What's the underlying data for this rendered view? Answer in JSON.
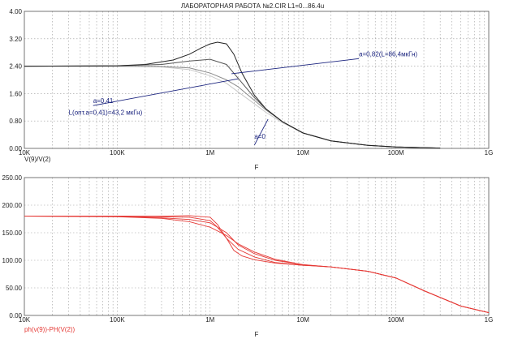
{
  "window_title": "ЛАБОРАТОРНАЯ РАБОТА №2.CIR L1=0...86.4u",
  "chart_data": [
    {
      "type": "line",
      "x_scale": "log",
      "xlim": [
        10000,
        1000000000
      ],
      "ylim": [
        0,
        4
      ],
      "x_tick_labels": [
        "10K",
        "100K",
        "1M",
        "10M",
        "100M",
        "1G"
      ],
      "x_tick_values": [
        10000,
        100000,
        1000000,
        10000000,
        100000000,
        1000000000
      ],
      "y_tick_labels": [
        "0.00",
        "0.80",
        "1.60",
        "2.40",
        "3.20",
        "4.00"
      ],
      "y_tick_values": [
        0,
        0.8,
        1.6,
        2.4,
        3.2,
        4.0
      ],
      "xlabel": "F",
      "ylabel": "V(9)/V(2)",
      "grid": true,
      "series": [
        {
          "color": "#c8c8c8",
          "x": [
            10000,
            100000,
            300000,
            600000,
            1000000,
            1500000,
            2000000,
            3000000,
            4000000,
            6000000,
            10000000,
            20000000,
            50000000,
            100000000,
            300000000
          ],
          "y": [
            2.4,
            2.4,
            2.38,
            2.3,
            2.12,
            1.9,
            1.65,
            1.3,
            1.05,
            0.75,
            0.45,
            0.22,
            0.09,
            0.04,
            0.01
          ]
        },
        {
          "color": "#8c8c8c",
          "x": [
            10000,
            100000,
            300000,
            600000,
            1000000,
            1500000,
            2000000,
            3000000,
            4000000,
            6000000,
            10000000,
            20000000,
            50000000,
            100000000,
            300000000
          ],
          "y": [
            2.4,
            2.4,
            2.39,
            2.35,
            2.2,
            2.0,
            1.8,
            1.4,
            1.12,
            0.78,
            0.45,
            0.22,
            0.09,
            0.04,
            0.01
          ]
        },
        {
          "color": "#555555",
          "x": [
            10000,
            100000,
            300000,
            600000,
            1000000,
            1500000,
            2000000,
            3000000,
            4000000,
            6000000,
            10000000,
            20000000,
            50000000,
            100000000,
            300000000
          ],
          "y": [
            2.4,
            2.41,
            2.45,
            2.55,
            2.6,
            2.45,
            2.05,
            1.48,
            1.15,
            0.78,
            0.45,
            0.22,
            0.09,
            0.04,
            0.01
          ]
        },
        {
          "color": "#222222",
          "x": [
            10000,
            100000,
            200000,
            400000,
            600000,
            800000,
            1000000,
            1200000,
            1500000,
            1800000,
            2200000,
            3000000,
            4000000,
            6000000,
            10000000,
            20000000,
            50000000,
            100000000,
            300000000
          ],
          "y": [
            2.4,
            2.41,
            2.45,
            2.58,
            2.75,
            2.93,
            3.05,
            3.1,
            3.05,
            2.75,
            2.2,
            1.55,
            1.15,
            0.78,
            0.45,
            0.22,
            0.09,
            0.04,
            0.01
          ]
        }
      ],
      "annotations": [
        {
          "text": "a=0,82(L=86,4мкГн)",
          "at": [
            40000000,
            2.62
          ],
          "to": [
            1700000,
            2.18
          ]
        },
        {
          "text": "a=0,41",
          "at": [
            55000,
            1.25
          ],
          "to": [
            2000000,
            2.03
          ]
        },
        {
          "text": "L(опт.a=0,41)=43,2 мкГн)",
          "at": [
            30000,
            0.98
          ]
        },
        {
          "text": "a=0",
          "at": [
            3000000,
            0.1
          ],
          "to": [
            4200000,
            0.85
          ]
        }
      ]
    },
    {
      "type": "line",
      "x_scale": "log",
      "xlim": [
        10000,
        1000000000
      ],
      "ylim": [
        0,
        250
      ],
      "x_tick_labels": [
        "10K",
        "100K",
        "1M",
        "10M",
        "100M",
        "1G"
      ],
      "x_tick_values": [
        10000,
        100000,
        1000000,
        10000000,
        100000000,
        1000000000
      ],
      "y_tick_labels": [
        "0.00",
        "50.00",
        "100.00",
        "150.00",
        "200.00",
        "250.00"
      ],
      "y_tick_values": [
        0,
        50,
        100,
        150,
        200,
        250
      ],
      "xlabel": "F",
      "ylabel": "ph(v(9))-PH(V(2))",
      "grid": true,
      "series": [
        {
          "color": "#e53935",
          "x": [
            10000,
            100000,
            300000,
            600000,
            1000000,
            1500000,
            2000000,
            3000000,
            5000000,
            10000000,
            20000000,
            50000000,
            100000000,
            200000000,
            500000000,
            1000000000
          ],
          "y": [
            180,
            179,
            176,
            170,
            160,
            145,
            130,
            115,
            102,
            92,
            88,
            80,
            68,
            45,
            17,
            5
          ]
        },
        {
          "color": "#e53935",
          "x": [
            10000,
            100000,
            300000,
            600000,
            1000000,
            1500000,
            2000000,
            3000000,
            5000000,
            10000000,
            20000000,
            50000000,
            100000000,
            200000000,
            500000000,
            1000000000
          ],
          "y": [
            180,
            179.5,
            177,
            174,
            168,
            150,
            128,
            112,
            100,
            92,
            88,
            80,
            68,
            45,
            17,
            5
          ]
        },
        {
          "color": "#e53935",
          "x": [
            10000,
            100000,
            300000,
            600000,
            1000000,
            1200000,
            1500000,
            2000000,
            3000000,
            5000000,
            10000000,
            20000000,
            50000000,
            100000000,
            200000000,
            500000000,
            1000000000
          ],
          "y": [
            180,
            180,
            179,
            178,
            172,
            160,
            140,
            120,
            106,
            96,
            91,
            88,
            80,
            68,
            45,
            17,
            5
          ]
        },
        {
          "color": "#e53935",
          "x": [
            10000,
            100000,
            300000,
            600000,
            1000000,
            1200000,
            1500000,
            1800000,
            2200000,
            3000000,
            5000000,
            10000000,
            20000000,
            50000000,
            100000000,
            200000000,
            500000000,
            1000000000
          ],
          "y": [
            180,
            180,
            180,
            181,
            178,
            165,
            140,
            118,
            108,
            101,
            95,
            91,
            88,
            80,
            68,
            45,
            17,
            5
          ]
        }
      ]
    }
  ]
}
